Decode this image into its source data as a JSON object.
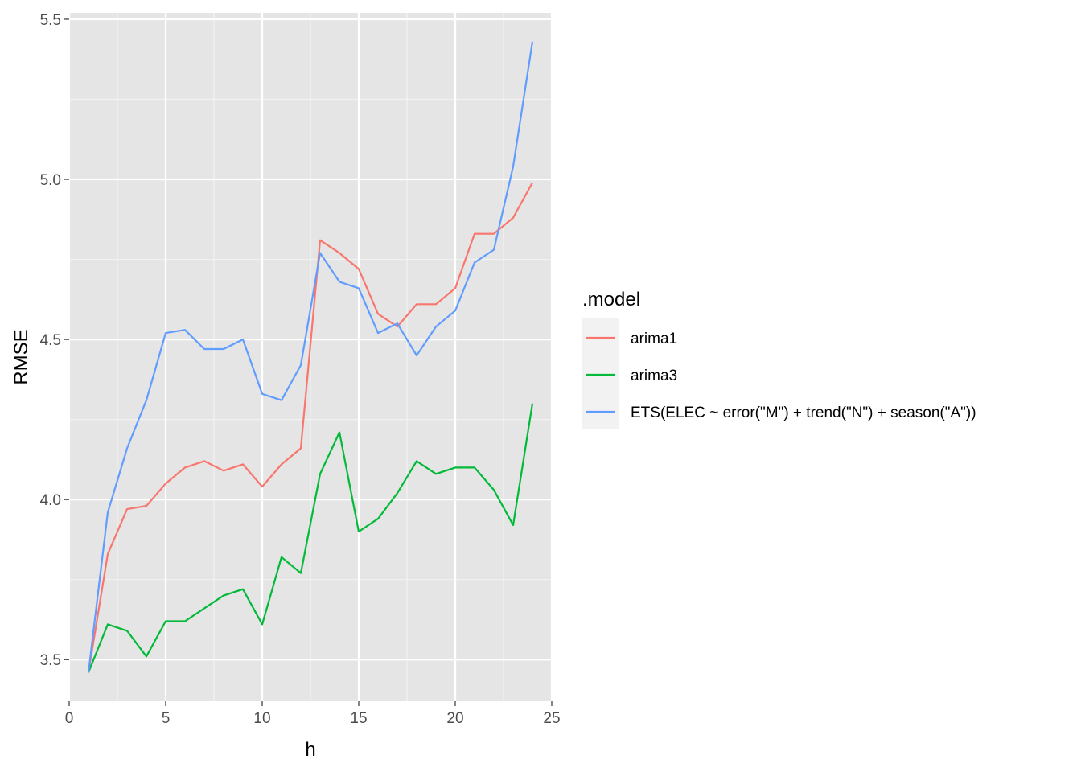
{
  "chart_data": {
    "type": "line",
    "xlabel": "h",
    "ylabel": "RMSE",
    "xlim": [
      0,
      25
    ],
    "ylim": [
      3.37,
      5.52
    ],
    "x_ticks": [
      0,
      5,
      10,
      15,
      20,
      25
    ],
    "x_tick_labels": [
      "0",
      "5",
      "10",
      "15",
      "20",
      "25"
    ],
    "y_ticks": [
      3.5,
      4.0,
      4.5,
      5.0,
      5.5
    ],
    "y_tick_labels": [
      "3.5",
      "4.0",
      "4.5",
      "5.0",
      "5.5"
    ],
    "grid": true,
    "background": "#e5e5e5",
    "legend": {
      "title": ".model",
      "position": "right"
    },
    "x": [
      1,
      2,
      3,
      4,
      5,
      6,
      7,
      8,
      9,
      10,
      11,
      12,
      13,
      14,
      15,
      16,
      17,
      18,
      19,
      20,
      21,
      22,
      23,
      24
    ],
    "series": [
      {
        "name": "arima1",
        "color": "#f8766d",
        "values": [
          3.46,
          3.83,
          3.97,
          3.98,
          4.05,
          4.1,
          4.12,
          4.09,
          4.11,
          4.04,
          4.11,
          4.16,
          4.81,
          4.77,
          4.72,
          4.58,
          4.54,
          4.61,
          4.61,
          4.66,
          4.83,
          4.83,
          4.88,
          4.99
        ]
      },
      {
        "name": "arima3",
        "color": "#00ba38",
        "values": [
          3.46,
          3.61,
          3.59,
          3.51,
          3.62,
          3.62,
          3.66,
          3.7,
          3.72,
          3.61,
          3.82,
          3.77,
          4.08,
          4.21,
          3.9,
          3.94,
          4.02,
          4.12,
          4.08,
          4.1,
          4.1,
          4.03,
          3.92,
          4.3
        ]
      },
      {
        "name": "ETS(ELEC ~ error(\"M\") + trend(\"N\") + season(\"A\"))",
        "color": "#619cff",
        "values": [
          3.46,
          3.96,
          4.16,
          4.31,
          4.52,
          4.53,
          4.47,
          4.47,
          4.5,
          4.33,
          4.31,
          4.42,
          4.77,
          4.68,
          4.66,
          4.52,
          4.55,
          4.45,
          4.54,
          4.59,
          4.74,
          4.78,
          5.04,
          5.43
        ]
      }
    ]
  }
}
